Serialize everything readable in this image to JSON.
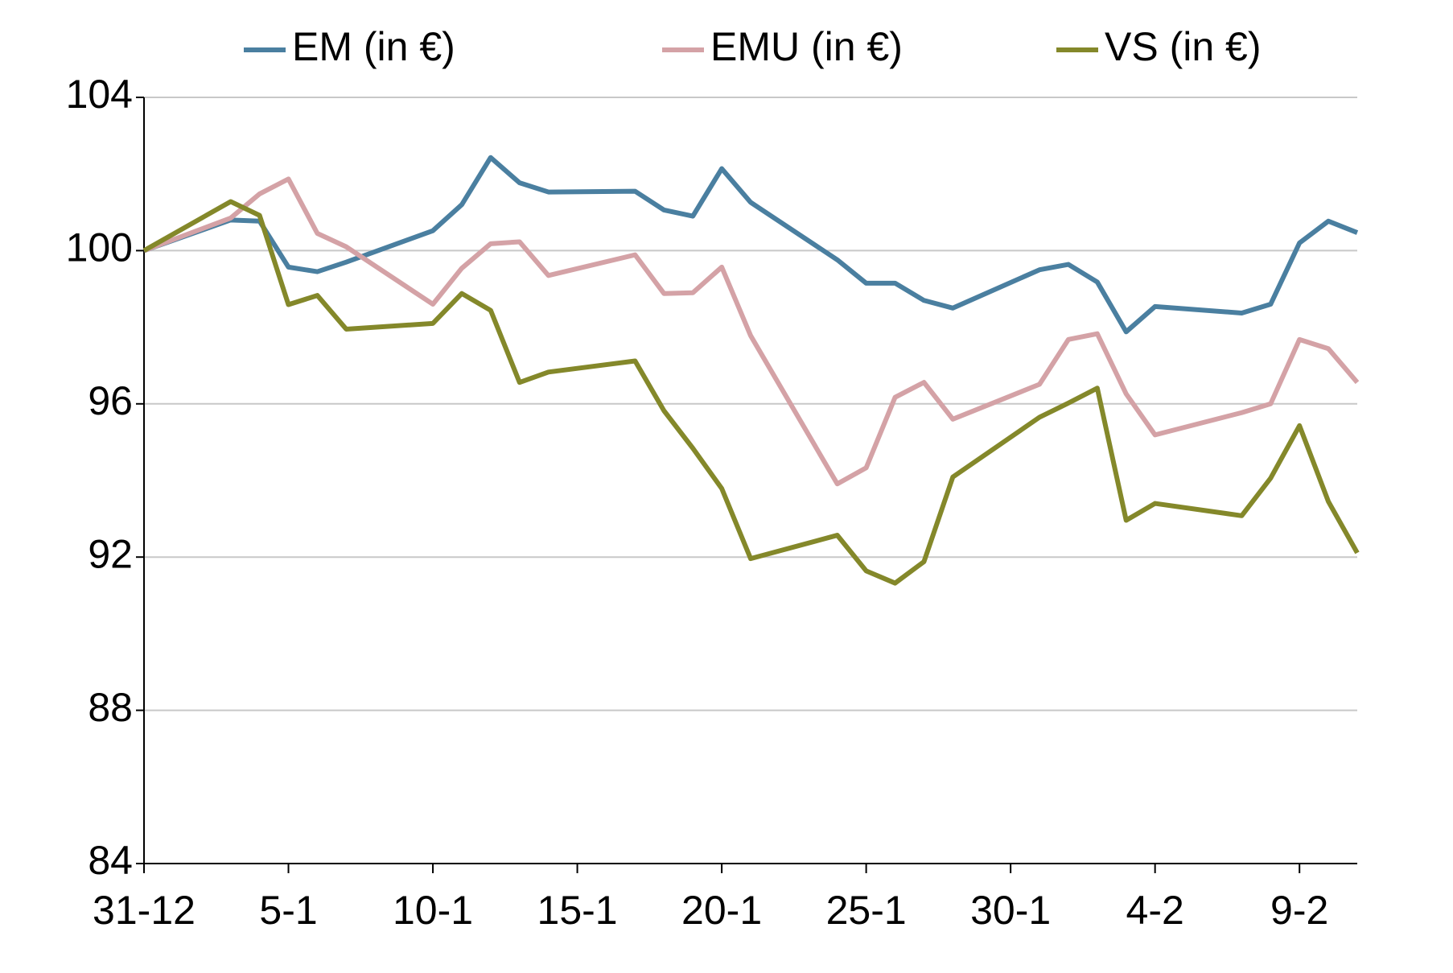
{
  "chart_data": {
    "type": "line",
    "x": [
      0,
      3,
      4,
      5,
      6,
      7,
      10,
      11,
      12,
      13,
      14,
      17,
      18,
      19,
      20,
      21,
      24,
      25,
      26,
      27,
      28,
      31,
      32,
      33,
      34,
      35,
      38,
      39,
      40,
      41,
      42
    ],
    "xlim": [
      0,
      42
    ],
    "xticks": [
      {
        "value": 0,
        "label": "31-12"
      },
      {
        "value": 5,
        "label": "5-1"
      },
      {
        "value": 10,
        "label": "10-1"
      },
      {
        "value": 15,
        "label": "15-1"
      },
      {
        "value": 20,
        "label": "20-1"
      },
      {
        "value": 25,
        "label": "25-1"
      },
      {
        "value": 30,
        "label": "30-1"
      },
      {
        "value": 35,
        "label": "4-2"
      },
      {
        "value": 40,
        "label": "9-2"
      }
    ],
    "ylim": [
      84,
      104
    ],
    "yticks": [
      84,
      88,
      92,
      96,
      100,
      104
    ],
    "grid": true,
    "legend": "top",
    "series": [
      {
        "name": "EM (in €)",
        "color": "#4a7fa0",
        "values": [
          100,
          100.8,
          100.77,
          99.57,
          99.45,
          99.7,
          100.52,
          101.2,
          102.43,
          101.77,
          101.53,
          101.55,
          101.06,
          100.9,
          102.14,
          101.26,
          99.76,
          99.15,
          99.15,
          98.7,
          98.5,
          99.5,
          99.64,
          99.18,
          97.88,
          98.54,
          98.37,
          98.6,
          100.2,
          100.77,
          100.47
        ]
      },
      {
        "name": "EMU (in €)",
        "color": "#d4a2a6",
        "values": [
          100,
          100.85,
          101.48,
          101.87,
          100.45,
          100.1,
          98.6,
          99.54,
          100.18,
          100.23,
          99.35,
          99.89,
          98.88,
          98.9,
          99.57,
          97.78,
          93.91,
          94.33,
          96.17,
          96.56,
          95.6,
          96.51,
          97.68,
          97.83,
          96.26,
          95.19,
          95.77,
          96,
          97.68,
          97.44,
          96.56
        ]
      },
      {
        "name": "VS (in €)",
        "color": "#84882a",
        "values": [
          100,
          101.28,
          100.92,
          98.59,
          98.83,
          97.95,
          98.1,
          98.88,
          98.44,
          96.56,
          96.83,
          97.12,
          95.82,
          94.84,
          93.79,
          91.96,
          92.57,
          91.64,
          91.32,
          91.88,
          94.09,
          95.65,
          96.02,
          96.41,
          92.96,
          93.4,
          93.08,
          94.06,
          95.43,
          93.45,
          92.11
        ]
      }
    ]
  }
}
